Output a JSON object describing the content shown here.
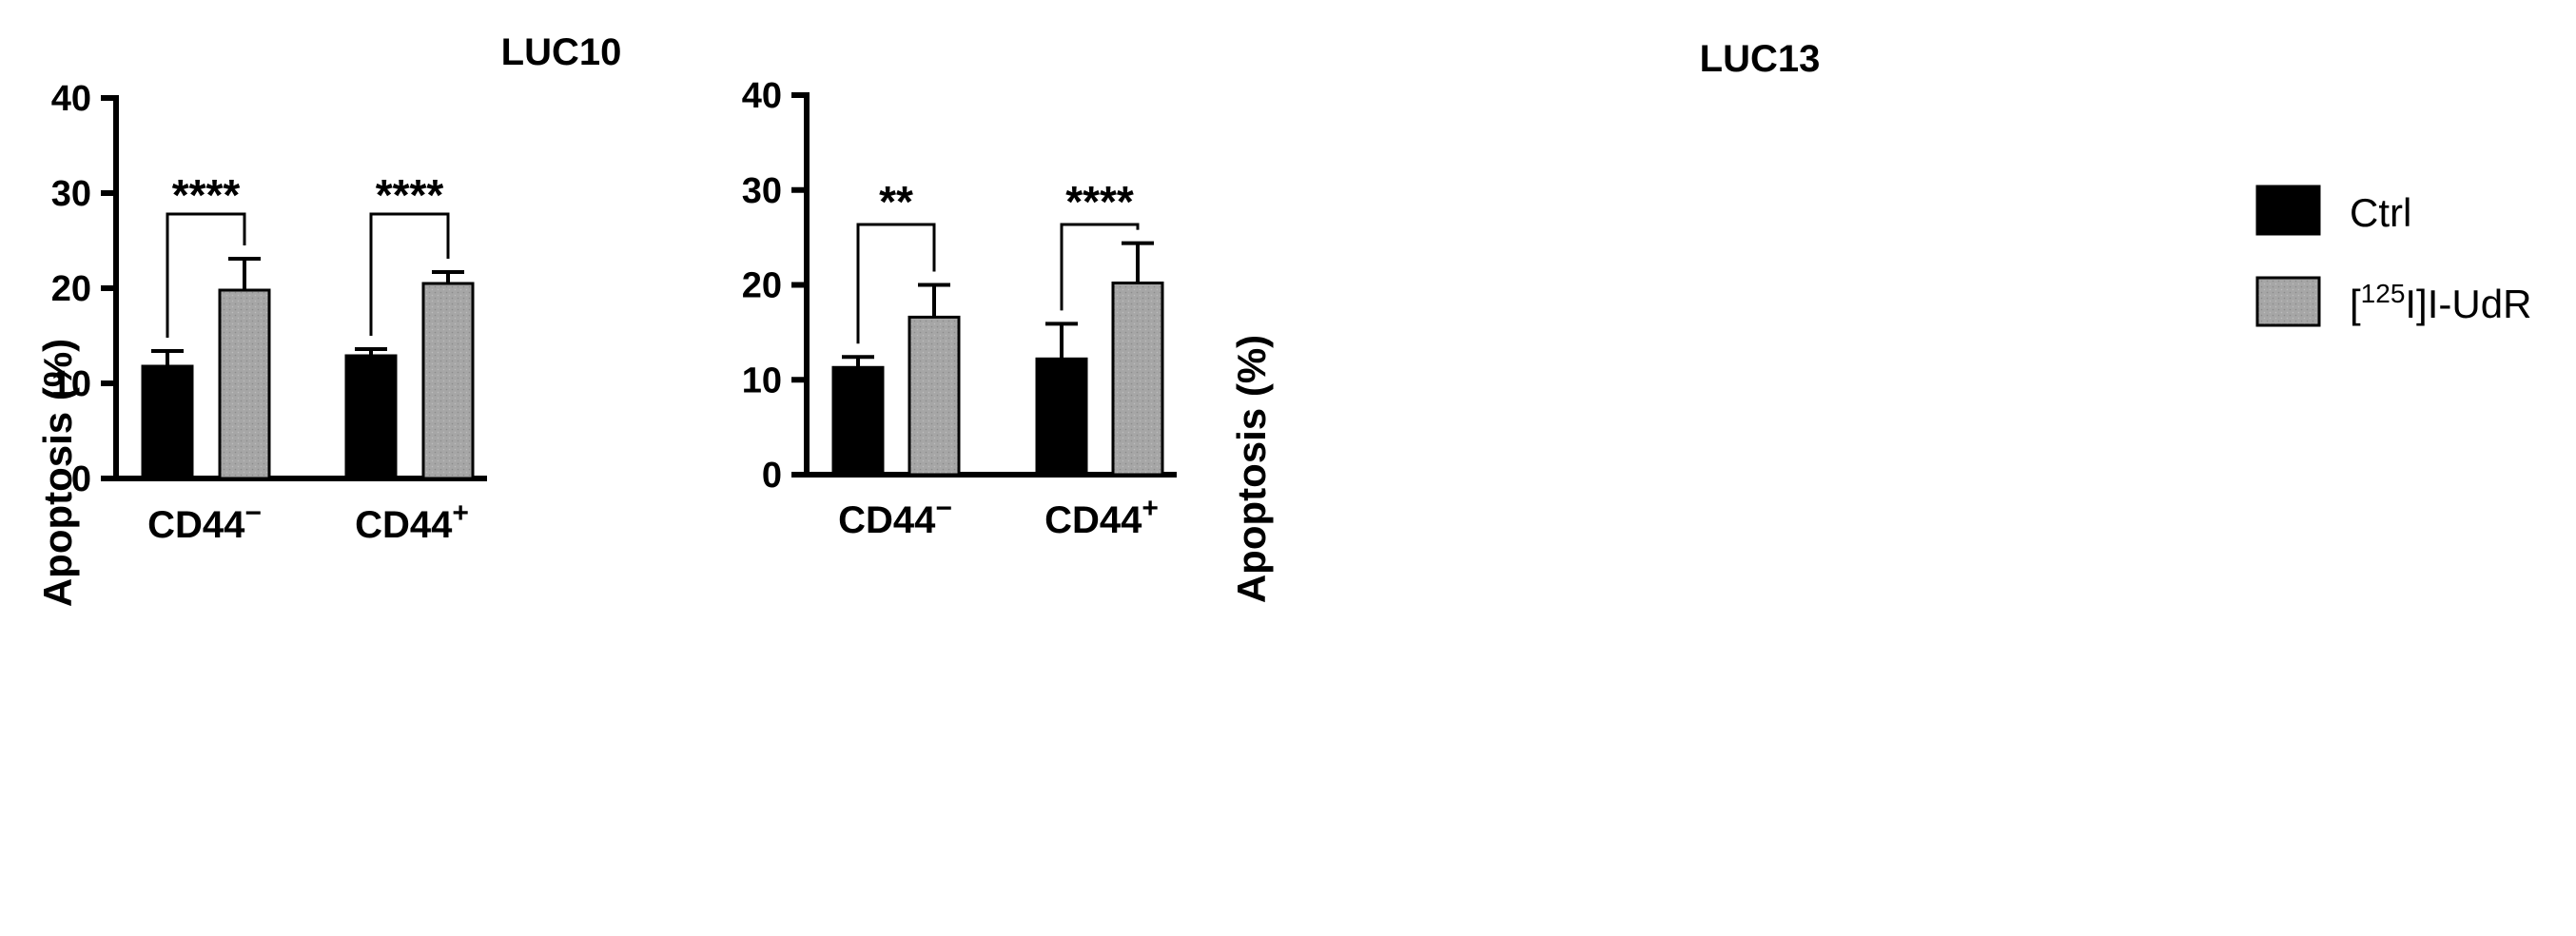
{
  "chart_data": [
    {
      "type": "bar",
      "title": "LUC10",
      "ylabel": "Apoptosis (%)",
      "ylim": [
        0,
        40
      ],
      "yticks": [
        0,
        10,
        20,
        30,
        40
      ],
      "categories": [
        {
          "base": "CD44",
          "sup": "−"
        },
        {
          "base": "CD44",
          "sup": "+"
        }
      ],
      "series": [
        {
          "name": "Ctrl",
          "values": [
            11.8,
            12.9
          ],
          "errors": [
            1.6,
            0.7
          ]
        },
        {
          "name": "[125I]I-UdR",
          "values": [
            19.8,
            20.5
          ],
          "errors": [
            3.3,
            1.2
          ]
        }
      ],
      "significance": [
        "****",
        "****"
      ]
    },
    {
      "type": "bar",
      "title": "LUC13",
      "ylabel": "Apoptosis (%)",
      "ylim": [
        0,
        40
      ],
      "yticks": [
        0,
        10,
        20,
        30,
        40
      ],
      "categories": [
        {
          "base": "CD44",
          "sup": "−"
        },
        {
          "base": "CD44",
          "sup": "+"
        }
      ],
      "series": [
        {
          "name": "Ctrl",
          "values": [
            11.3,
            12.2
          ],
          "errors": [
            1.1,
            3.7
          ]
        },
        {
          "name": "[125I]I-UdR",
          "values": [
            16.6,
            20.2
          ],
          "errors": [
            3.4,
            4.2
          ]
        }
      ],
      "significance": [
        "**",
        "****"
      ]
    }
  ],
  "legend": {
    "items": [
      {
        "label_parts": [
          "Ctrl"
        ],
        "color": "#000000"
      },
      {
        "label_parts": [
          "[",
          "125",
          "I]I-UdR"
        ],
        "color": "#a6a6a6"
      }
    ]
  },
  "colors": {
    "ctrl": "#000000",
    "treated": "#a6a6a6"
  }
}
